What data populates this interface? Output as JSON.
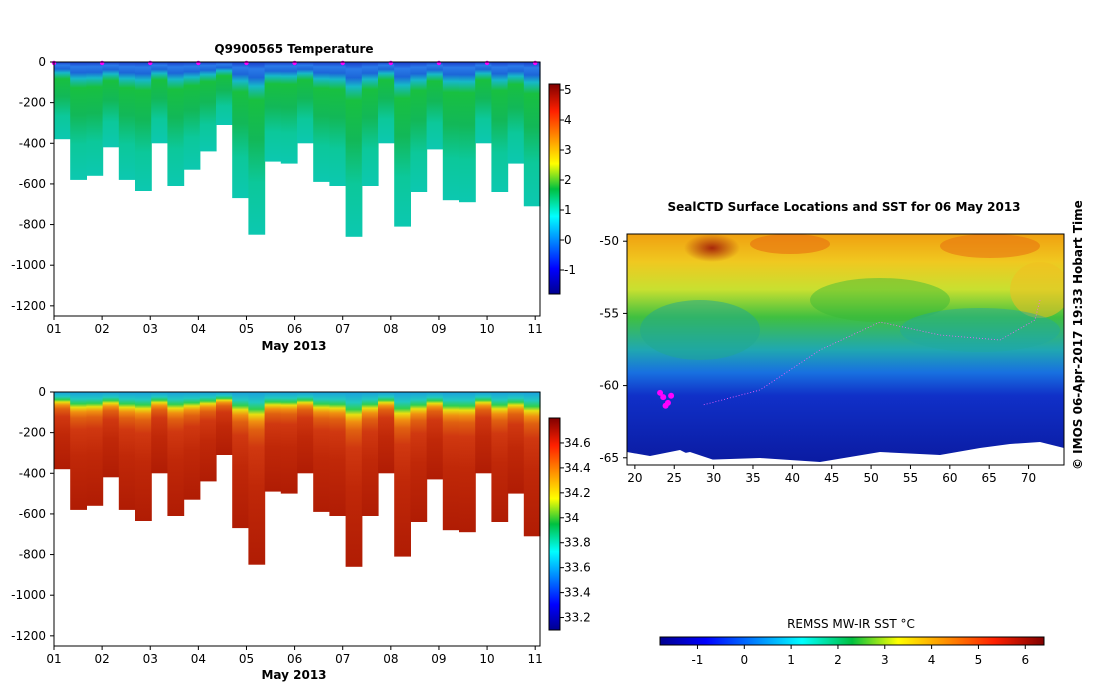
{
  "chart_data": [
    {
      "type": "heatmap",
      "title": "Q9900565  Temperature",
      "xlabel": "May 2013",
      "ylabel": "",
      "x_ticks": [
        "01",
        "02",
        "03",
        "04",
        "05",
        "06",
        "07",
        "08",
        "09",
        "10",
        "11"
      ],
      "y_ticks": [
        "0",
        "-200",
        "-400",
        "-600",
        "-800",
        "-1000",
        "-1200"
      ],
      "ylim": [
        -1250,
        0
      ],
      "xlim": [
        1,
        11.1
      ],
      "colorbar_ticks": [
        "5",
        "4",
        "3",
        "2",
        "1",
        "0",
        "-1"
      ],
      "colorbar_range": [
        -1.8,
        5.2
      ],
      "profile_depths_m": [
        380,
        580,
        560,
        420,
        580,
        635,
        400,
        610,
        530,
        440,
        310,
        670,
        850,
        490,
        500,
        400,
        590,
        610,
        860,
        610,
        400,
        810,
        640,
        430,
        680,
        690,
        400,
        640,
        500,
        710
      ]
    },
    {
      "type": "heatmap",
      "title": "",
      "xlabel": "May 2013",
      "ylabel": "",
      "x_ticks": [
        "01",
        "02",
        "03",
        "04",
        "05",
        "06",
        "07",
        "08",
        "09",
        "10",
        "11"
      ],
      "y_ticks": [
        "0",
        "-200",
        "-400",
        "-600",
        "-800",
        "-1000",
        "-1200"
      ],
      "ylim": [
        -1250,
        0
      ],
      "xlim": [
        1,
        11.1
      ],
      "colorbar_ticks": [
        "34.6",
        "34.4",
        "34.2",
        "34",
        "33.8",
        "33.6",
        "33.4",
        "33.2"
      ],
      "colorbar_range": [
        33.1,
        34.8
      ],
      "profile_depths_m": [
        380,
        580,
        560,
        420,
        580,
        635,
        400,
        610,
        530,
        440,
        310,
        670,
        850,
        490,
        500,
        400,
        590,
        610,
        860,
        610,
        400,
        810,
        640,
        430,
        680,
        690,
        400,
        640,
        500,
        710
      ]
    },
    {
      "type": "heatmap",
      "title": "SealCTD Surface Locations and SST for 06 May 2013",
      "xlabel": "",
      "ylabel": "",
      "x_ticks": [
        "20",
        "25",
        "30",
        "35",
        "40",
        "45",
        "50",
        "55",
        "60",
        "65",
        "70"
      ],
      "y_ticks": [
        "-50",
        "-55",
        "-60",
        "-65"
      ],
      "xlim": [
        19,
        74.5
      ],
      "ylim": [
        -65.5,
        -49.5
      ],
      "seal_locations": [
        [
          23.2,
          -60.5
        ],
        [
          23.6,
          -60.8
        ],
        [
          24.2,
          -61.2
        ],
        [
          24.6,
          -60.7
        ],
        [
          23.9,
          -61.4
        ]
      ]
    },
    {
      "type": "heatmap",
      "title": "REMSS MW-IR SST °C",
      "colorbar_ticks": [
        "-1",
        "0",
        "1",
        "2",
        "3",
        "4",
        "5",
        "6"
      ],
      "colorbar_range": [
        -1.8,
        6.4
      ]
    }
  ],
  "side_caption": "© IMOS 06-Apr-2017 19:33 Hobart Time",
  "marker_color": "#ff00ff"
}
